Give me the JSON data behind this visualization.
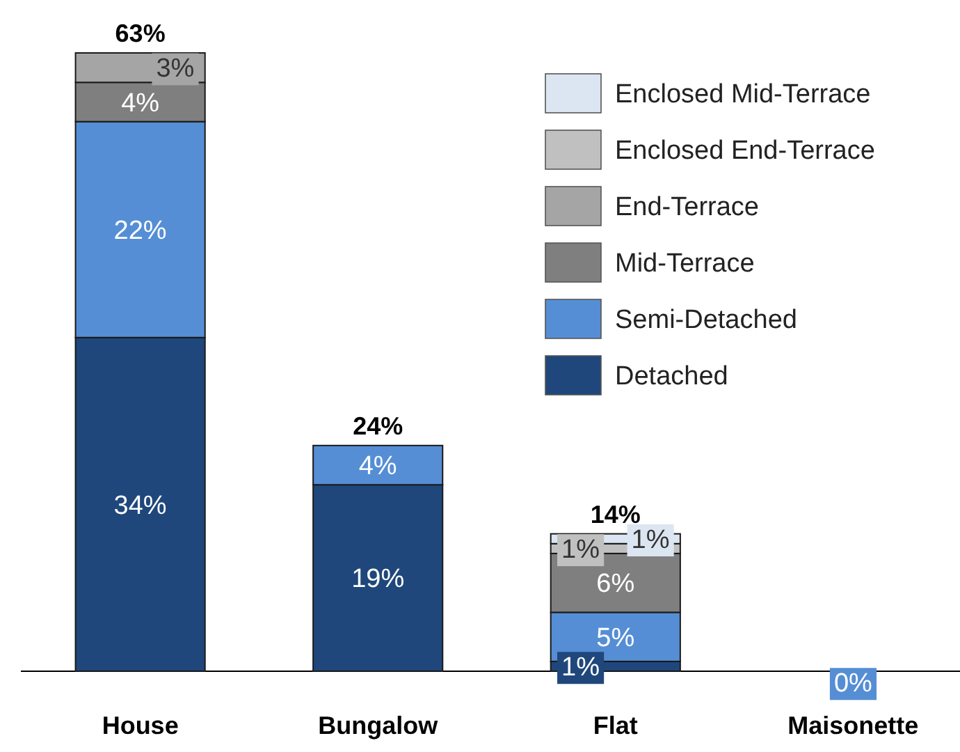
{
  "chart_data": {
    "type": "bar",
    "stacked": true,
    "categories": [
      "House",
      "Bungalow",
      "Flat",
      "Maisonette"
    ],
    "series": [
      {
        "name": "Detached",
        "color": "#1f477b",
        "values": [
          34,
          19,
          1,
          null
        ],
        "value_labels": [
          "34%",
          "19%",
          "1%",
          null
        ]
      },
      {
        "name": "Semi-Detached",
        "color": "#558ed5",
        "values": [
          22,
          4,
          5,
          0
        ],
        "value_labels": [
          "22%",
          "4%",
          "5%",
          "0%"
        ]
      },
      {
        "name": "Mid-Terrace",
        "color": "#7f7f7f",
        "values": [
          4,
          null,
          6,
          null
        ],
        "value_labels": [
          "4%",
          null,
          "6%",
          null
        ]
      },
      {
        "name": "End-Terrace",
        "color": "#a5a5a5",
        "values": [
          3,
          null,
          null,
          null
        ],
        "value_labels": [
          "3%",
          null,
          null,
          null
        ]
      },
      {
        "name": "Enclosed End-Terrace",
        "color": "#c0c0c0",
        "values": [
          null,
          null,
          1,
          null
        ],
        "value_labels": [
          null,
          null,
          "1%",
          null
        ]
      },
      {
        "name": "Enclosed Mid-Terrace",
        "color": "#dce6f2",
        "values": [
          null,
          null,
          1,
          null
        ],
        "value_labels": [
          null,
          null,
          "1%",
          null
        ]
      }
    ],
    "totals": [
      "63%",
      "24%",
      "14%",
      null
    ],
    "legend": "top right"
  }
}
